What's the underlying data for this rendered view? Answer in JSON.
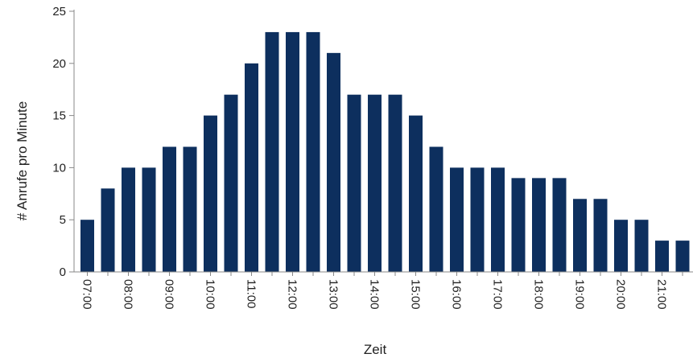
{
  "chart_data": {
    "type": "bar",
    "title": "",
    "xlabel": "Zeit",
    "ylabel": "# Anrufe pro Minute",
    "ylim": [
      0,
      25
    ],
    "yticks": [
      "0",
      "5",
      "10",
      "15",
      "20",
      "25"
    ],
    "categories": [
      "07:00",
      "07:30",
      "08:00",
      "08:30",
      "09:00",
      "09:30",
      "10:00",
      "10:30",
      "11:00",
      "11:30",
      "12:00",
      "12:30",
      "13:00",
      "13:30",
      "14:00",
      "14:30",
      "15:00",
      "15:30",
      "16:00",
      "16:30",
      "17:00",
      "17:30",
      "18:00",
      "18:30",
      "19:00",
      "19:30",
      "20:00",
      "20:30",
      "21:00",
      "21:30"
    ],
    "xtick_labels": [
      "07:00",
      "08:00",
      "09:00",
      "10:00",
      "11:00",
      "12:00",
      "13:00",
      "14:00",
      "15:00",
      "16:00",
      "17:00",
      "18:00",
      "19:00",
      "20:00",
      "21:00"
    ],
    "values": [
      5,
      8,
      10,
      10,
      12,
      12,
      15,
      17,
      20,
      23,
      23,
      23,
      21,
      17,
      17,
      17,
      15,
      12,
      10,
      10,
      10,
      9,
      9,
      9,
      7,
      7,
      5,
      5,
      3,
      3
    ],
    "grid": false,
    "colors": {
      "bar": "#0d2f5e",
      "axis": "#888888"
    }
  }
}
